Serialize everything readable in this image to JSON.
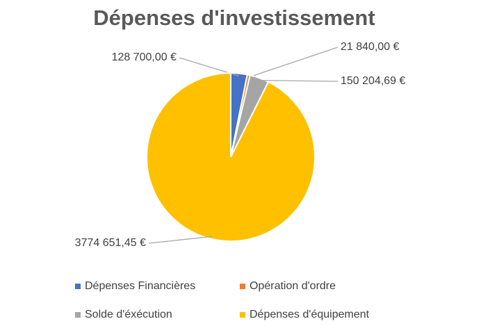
{
  "chart_data": {
    "type": "pie",
    "title": "Dépenses d'investissement",
    "categories": [
      "Dépenses Financières",
      "Opération d'ordre",
      "Solde d'éxécution",
      "Dépenses d'équipement"
    ],
    "values": [
      128700,
      21840,
      150204.69,
      3774651.45
    ],
    "value_labels": [
      "128 700,00 €",
      "21 840,00 €",
      "150 204,69 €",
      "3774 651,45 €"
    ],
    "colors": [
      "#4472c4",
      "#ed7d31",
      "#a5a5a5",
      "#ffc000"
    ],
    "legend": "bottom"
  }
}
